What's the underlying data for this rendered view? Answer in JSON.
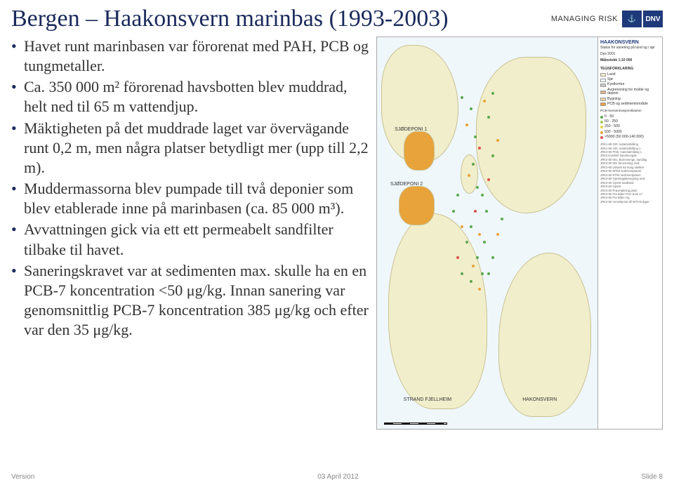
{
  "header": {
    "title": "Bergen – Haakonsvern marinbas (1993-2003)",
    "brand_text": "MANAGING RISK",
    "logo_anchor": "⚓",
    "logo_dnv": "DNV"
  },
  "bullets": [
    "Havet runt marinbasen var förorenat med PAH, PCB og tungmetaller.",
    "Ca. 350 000 m² förorenad havsbotten blev muddrad, helt ned til 65 m vattendjup.",
    "Mäktigheten på det muddrade laget var övervägande runt 0,2 m, men några platser betydligt mer (upp till 2,2 m).",
    "Muddermassorna blev pumpade till två deponier som blev etablerade inne på marinbasen (ca. 85 000 m³).",
    "Avvattningen gick via ett ett permeabelt sandfilter tilbake til havet.",
    "Saneringskravet var at sedimenten max. skulle ha en en PCB-7 koncentration <50 μg/kg. Innan sanering var genomsnittlig PCB-7 koncentration 385 μg/kg och efter var den 35 μg/kg."
  ],
  "map": {
    "legend_title": "HAAKONSVERN",
    "legend_subtitle": "Status for sanering på land og i sjø",
    "legend_date": "Des 2001",
    "legend_scale": "Målestokk 1:10 000",
    "legend_header": "TEGNFORKLARING",
    "legend_items": [
      {
        "color": "#f1eecb",
        "label": "Land"
      },
      {
        "color": "#eff7fb",
        "label": "Sjø"
      },
      {
        "color": "#c9c9c9",
        "label": "Kystkontur"
      },
      {
        "color": "#d9b38c",
        "label": "Avgrensning for molde og deponi"
      },
      {
        "color": "#e8d8a8",
        "label": "Bygning"
      },
      {
        "color": "#e8a33a",
        "label": "PCB og sedimentområde"
      }
    ],
    "pcb_ranges": [
      {
        "label": "0 - 50"
      },
      {
        "label": "50 - 250"
      },
      {
        "label": "250 - 500"
      },
      {
        "label": "500 - 5000"
      },
      {
        "label": ">5000 (50 000-140 000)"
      }
    ],
    "depo_labels": [
      "SJØDEPONI 1",
      "SJØDEPONI 2",
      "STRAND FJELLHEIM",
      "HAKONSVERN"
    ],
    "footer_notes": [
      "JRK1-68 100, materialmåling",
      "JRK1-68 100, materialmåling 1",
      "JRK3-60 PCB, materialmåling 1",
      "JRK3 Kvartsitt sandmengde",
      "JRK3-60 001, Bunnmengn, sandlag",
      "JRK3-60 001 forurensing nivå",
      "JRK3-60 Utmark 8a marg utakket",
      "JRK3-60 MT94 sedimentprøver",
      "JRK3-60 RT94 sedimentprøver",
      "JRK3-60 Tjærelagsberegning nivå",
      "JRK3-60 Gjenst totalkontr",
      "JRK3-60 Gjenst",
      "JRK3-60 Prøvetakning plast",
      "JRK3-60 Fra kilder PAH Sum-17",
      "JRK3-60 Fra kilder Hg",
      "JRK3-60 Annerkjente trfl M70-bolyger"
    ]
  },
  "footer": {
    "left": "Version",
    "center": "03 April 2012",
    "right": "Slide 8"
  }
}
